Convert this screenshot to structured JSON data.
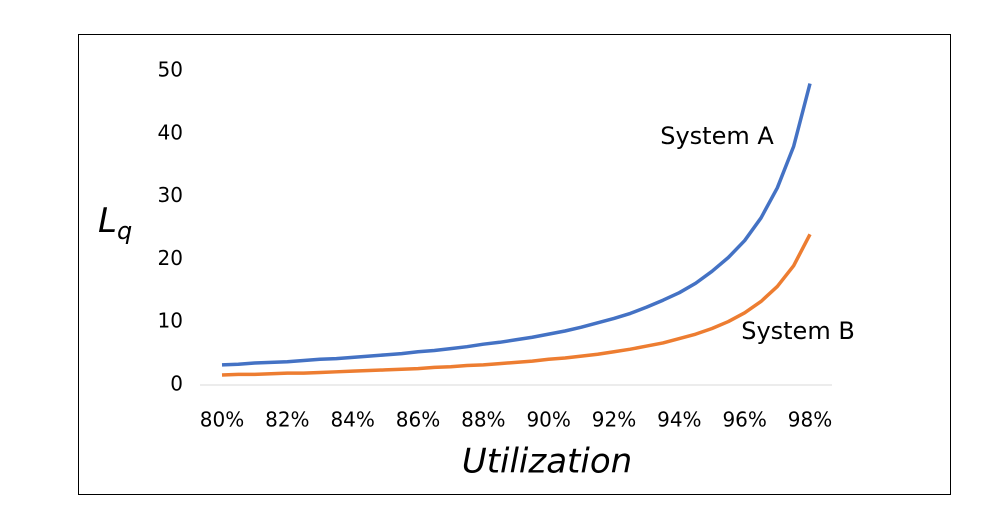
{
  "chart_data": {
    "type": "line",
    "xlabel": "Utilization",
    "ylabel": "Lq",
    "x": [
      80,
      80.5,
      81,
      81.5,
      82,
      82.5,
      83,
      83.5,
      84,
      84.5,
      85,
      85.5,
      86,
      86.5,
      87,
      87.5,
      88,
      88.5,
      89,
      89.5,
      90,
      90.5,
      91,
      91.5,
      92,
      92.5,
      93,
      93.5,
      94,
      94.5,
      95,
      95.5,
      96,
      96.5,
      97,
      97.5,
      98
    ],
    "series": [
      {
        "name": "System A",
        "color": "#4472c4",
        "values": [
          3.2,
          3.3,
          3.5,
          3.6,
          3.7,
          3.9,
          4.1,
          4.2,
          4.4,
          4.6,
          4.8,
          5.0,
          5.3,
          5.5,
          5.8,
          6.1,
          6.5,
          6.8,
          7.2,
          7.6,
          8.1,
          8.6,
          9.2,
          9.9,
          10.6,
          11.4,
          12.4,
          13.5,
          14.7,
          16.2,
          18.1,
          20.3,
          23.0,
          26.6,
          31.4,
          38.0,
          48.0
        ]
      },
      {
        "name": "System B",
        "color": "#ed7d31",
        "values": [
          1.6,
          1.7,
          1.7,
          1.8,
          1.9,
          1.9,
          2.0,
          2.1,
          2.2,
          2.3,
          2.4,
          2.5,
          2.6,
          2.8,
          2.9,
          3.1,
          3.2,
          3.4,
          3.6,
          3.8,
          4.1,
          4.3,
          4.6,
          4.9,
          5.3,
          5.7,
          6.2,
          6.7,
          7.4,
          8.1,
          9.0,
          10.1,
          11.5,
          13.3,
          15.7,
          19.0,
          24.0
        ]
      }
    ],
    "xlim": [
      80,
      98
    ],
    "xticks": [
      {
        "value": 80,
        "label": "80%"
      },
      {
        "value": 82,
        "label": "82%"
      },
      {
        "value": 84,
        "label": "84%"
      },
      {
        "value": 86,
        "label": "86%"
      },
      {
        "value": 88,
        "label": "88%"
      },
      {
        "value": 90,
        "label": "90%"
      },
      {
        "value": 92,
        "label": "92%"
      },
      {
        "value": 94,
        "label": "94%"
      },
      {
        "value": 96,
        "label": "96%"
      },
      {
        "value": 98,
        "label": "98%"
      }
    ],
    "ylim": [
      0,
      50
    ],
    "yticks": [
      0,
      10,
      20,
      30,
      40,
      50
    ],
    "grid": false
  }
}
